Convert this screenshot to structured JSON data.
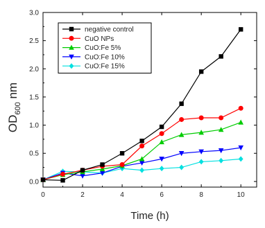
{
  "chart_data": {
    "type": "line",
    "xlabel": "Time (h)",
    "ylabel_main": "OD",
    "ylabel_sub": "600",
    "ylabel_unit": " nm",
    "xlim": [
      0,
      10.8
    ],
    "ylim": [
      -0.1,
      3.0
    ],
    "xticks": [
      0,
      2,
      4,
      6,
      8,
      10
    ],
    "yticks": [
      0.0,
      0.5,
      1.0,
      1.5,
      2.0,
      2.5,
      3.0
    ],
    "ytick_labels": [
      "0.0",
      "0.5",
      "1.0",
      "1.5",
      "2.0",
      "2.5",
      "3.0"
    ],
    "grid": false,
    "legend_position": "top-left",
    "x": [
      0,
      1,
      2,
      3,
      4,
      5,
      6,
      7,
      8,
      9,
      10
    ],
    "series": [
      {
        "name": "negative control",
        "color": "#000000",
        "marker": "square",
        "values": [
          0.03,
          0.02,
          0.2,
          0.3,
          0.5,
          0.72,
          0.97,
          1.38,
          1.95,
          2.22,
          2.7
        ]
      },
      {
        "name": "CuO NPs",
        "color": "#ff0000",
        "marker": "circle",
        "values": [
          0.03,
          0.13,
          0.2,
          0.27,
          0.3,
          0.63,
          0.85,
          1.1,
          1.13,
          1.13,
          1.3
        ]
      },
      {
        "name": "CuO:Fe 5%",
        "color": "#00cc00",
        "marker": "triangle-up",
        "values": [
          0.03,
          0.12,
          0.17,
          0.22,
          0.28,
          0.4,
          0.7,
          0.83,
          0.87,
          0.92,
          1.05
        ]
      },
      {
        "name": "CuO:Fe 10%",
        "color": "#0000ff",
        "marker": "triangle-down",
        "values": [
          0.03,
          0.15,
          0.1,
          0.15,
          0.27,
          0.33,
          0.4,
          0.5,
          0.53,
          0.55,
          0.6
        ]
      },
      {
        "name": "CuO:Fe 15%",
        "color": "#00e0e0",
        "marker": "diamond",
        "values": [
          0.03,
          0.18,
          0.17,
          0.15,
          0.23,
          0.2,
          0.23,
          0.25,
          0.35,
          0.37,
          0.4
        ]
      }
    ]
  }
}
